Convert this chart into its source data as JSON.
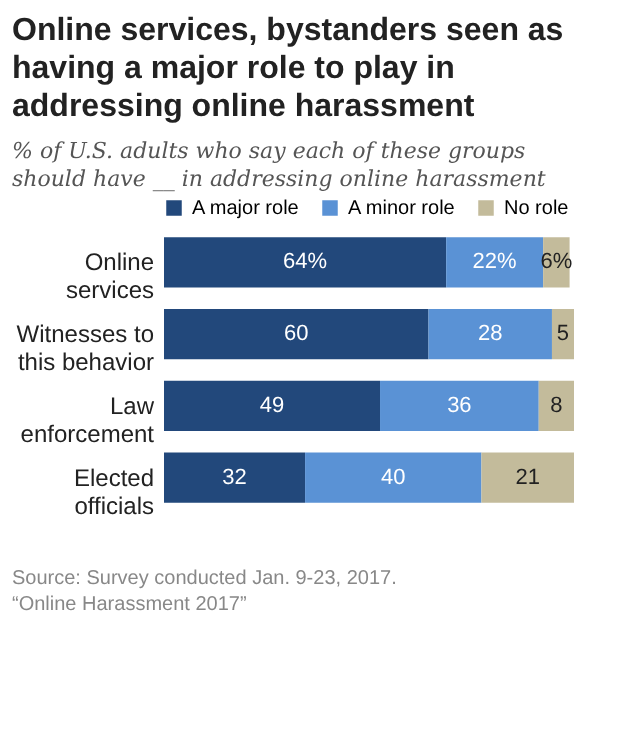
{
  "chart_data": {
    "type": "bar",
    "orientation": "horizontal",
    "stacked": true,
    "title": "Online services, bystanders seen as having a major role to play in addressing online harassment",
    "subtitle": "% of U.S. adults who say each of these groups should have __ in addressing online harassment",
    "categories": [
      "Online services",
      "Witnesses to this behavior",
      "Law enforcement",
      "Elected officials"
    ],
    "series": [
      {
        "name": "A major role",
        "color": "#22487b",
        "values": [
          64,
          60,
          49,
          32
        ],
        "value_labels": [
          "64%",
          "60",
          "49",
          "32"
        ]
      },
      {
        "name": "A minor role",
        "color": "#5a92d5",
        "values": [
          22,
          28,
          36,
          40
        ],
        "value_labels": [
          "22%",
          "28",
          "36",
          "40"
        ]
      },
      {
        "name": "No role",
        "color": "#c3bb9b",
        "values": [
          6,
          5,
          8,
          21
        ],
        "value_labels": [
          "6%",
          "5",
          "8",
          "21"
        ]
      }
    ],
    "legend": "top",
    "annotations": [
      "Source: Survey conducted Jan. 9-23, 2017.",
      "“Online Harassment 2017”"
    ]
  }
}
